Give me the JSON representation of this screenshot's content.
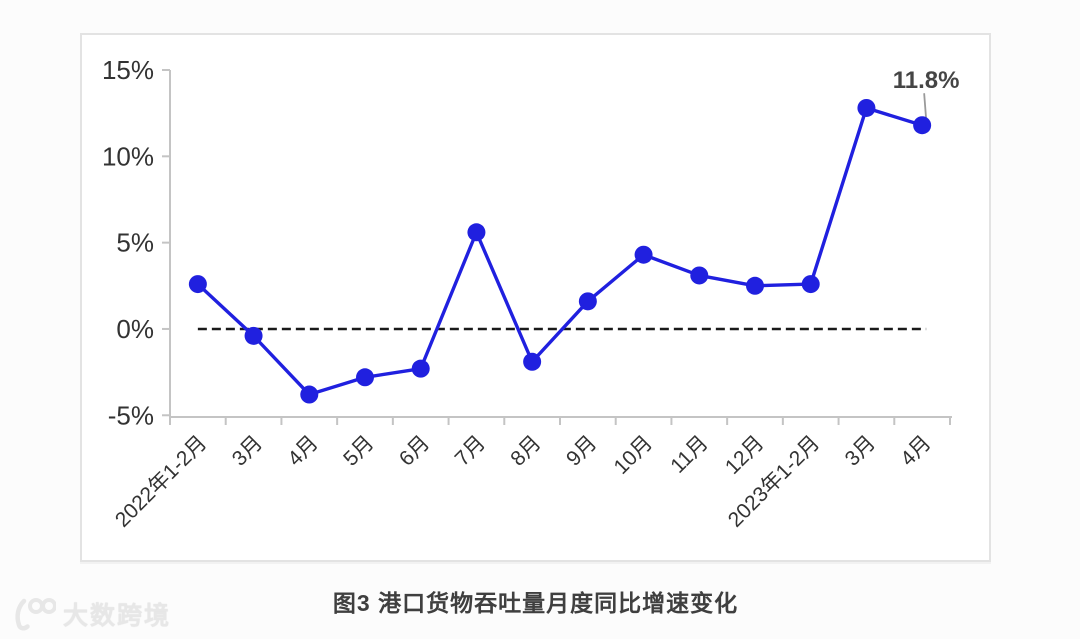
{
  "caption": "图3 港口货物吞吐量月度同比增速变化",
  "watermark": {
    "text": "大数跨境",
    "logo": "100-logo"
  },
  "chart_data": {
    "type": "line",
    "title": "图3 港口货物吞吐量月度同比增速变化",
    "categories": [
      "2022年1-2月",
      "3月",
      "4月",
      "5月",
      "6月",
      "7月",
      "8月",
      "9月",
      "10月",
      "11月",
      "12月",
      "2023年1-2月",
      "3月",
      "4月"
    ],
    "values": [
      2.6,
      -0.4,
      -3.8,
      -2.8,
      -2.3,
      5.6,
      -1.9,
      1.6,
      4.3,
      3.1,
      2.5,
      2.6,
      12.8,
      11.8
    ],
    "unit": "%",
    "xlabel": "",
    "ylabel": "",
    "y_ticks": [
      {
        "value": 15,
        "label": "15%"
      },
      {
        "value": 10,
        "label": "10%"
      },
      {
        "value": 5,
        "label": "5%"
      },
      {
        "value": 0,
        "label": "0%"
      },
      {
        "value": -5,
        "label": "-5%"
      }
    ],
    "ylim": [
      -5.1,
      15
    ],
    "grid": "off",
    "legend": "none",
    "zero_line": "dashed",
    "x_label_rotation": -45,
    "annotation": {
      "index": 13,
      "text": "11.8%"
    },
    "colors": {
      "line": "#2020DF",
      "marker": "#2020DF",
      "axis": "#c4c4c4",
      "zero_line": "#1a1a1a",
      "tick_label": "#333333",
      "annotation_label": "#454545",
      "leader": "#9a9a9a"
    }
  }
}
